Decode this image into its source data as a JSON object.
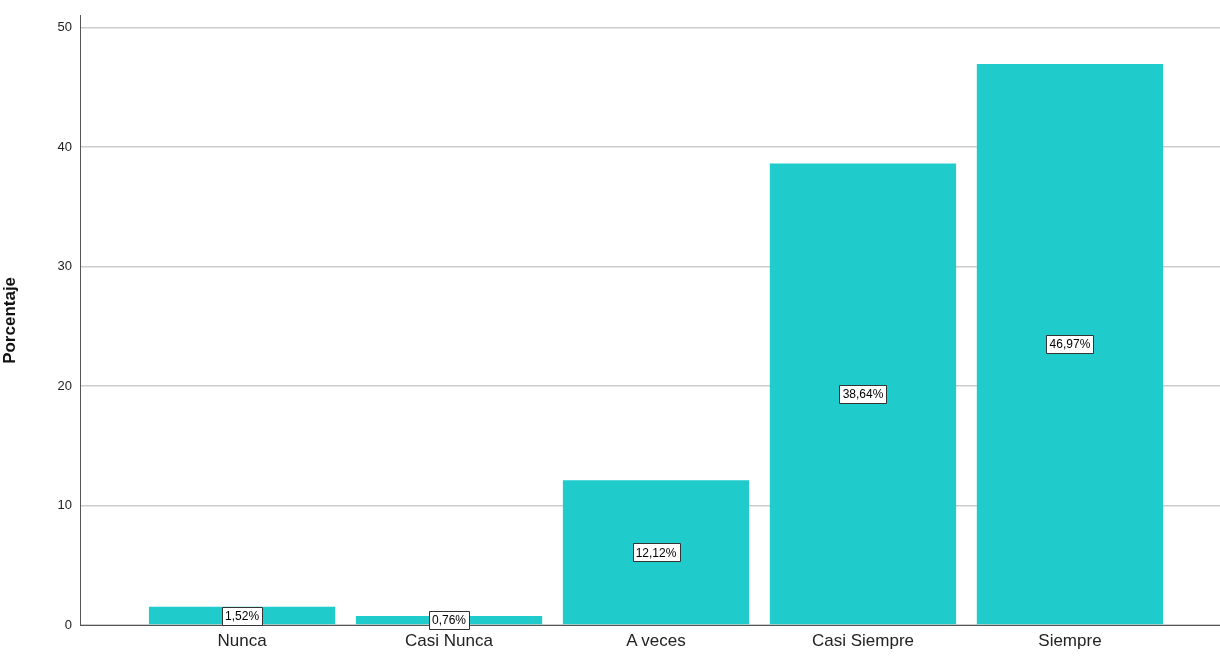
{
  "chart_data": {
    "type": "bar",
    "ylabel": "Porcentaje",
    "categories": [
      "Nunca",
      "Casi Nunca",
      "A veces",
      "Casi Siempre",
      "Siempre"
    ],
    "values": [
      1.52,
      0.76,
      12.12,
      38.64,
      46.97
    ],
    "value_labels": [
      "1,52%",
      "0,76%",
      "12,12%",
      "38,64%",
      "46,97%"
    ],
    "color": "#1fcbcb",
    "ylim": [
      0,
      51
    ],
    "yticks": [
      0,
      10,
      20,
      30,
      40,
      50
    ],
    "grid": "y"
  }
}
